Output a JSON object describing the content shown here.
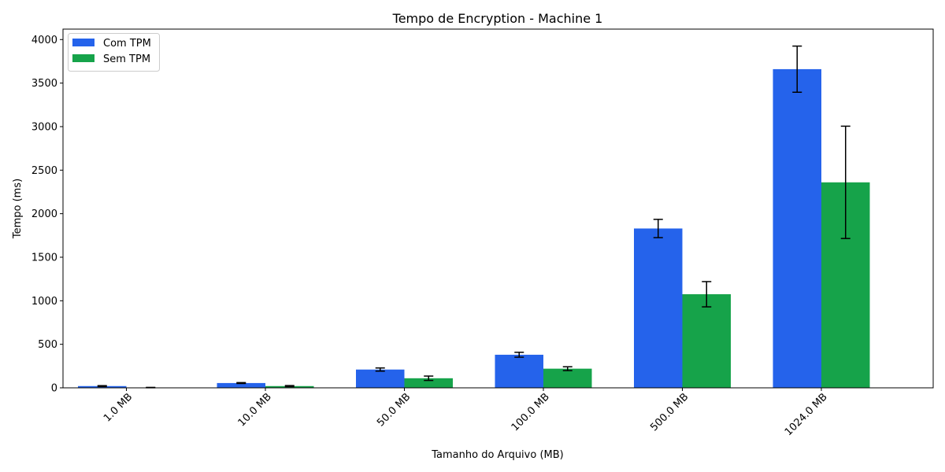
{
  "chart_data": {
    "type": "bar",
    "title": "Tempo de Encryption - Machine 1",
    "xlabel": "Tamanho do Arquivo (MB)",
    "ylabel": "Tempo (ms)",
    "categories": [
      "1.0 MB",
      "10.0 MB",
      "50.0 MB",
      "100.0 MB",
      "500.0 MB",
      "1024.0 MB"
    ],
    "ylim": [
      0,
      4120
    ],
    "yticks": [
      0,
      500,
      1000,
      1500,
      2000,
      2500,
      3000,
      3500,
      4000
    ],
    "grid": false,
    "legend_position": "top-left",
    "series": [
      {
        "name": "Com TPM",
        "color": "#2563eb",
        "values": [
          20,
          55,
          210,
          380,
          1830,
          3660
        ],
        "errors": [
          5,
          5,
          18,
          28,
          105,
          265
        ]
      },
      {
        "name": "Sem TPM",
        "color": "#16a34a",
        "values": [
          3,
          20,
          110,
          220,
          1075,
          2360
        ],
        "errors": [
          2,
          6,
          25,
          22,
          145,
          645
        ]
      }
    ]
  }
}
